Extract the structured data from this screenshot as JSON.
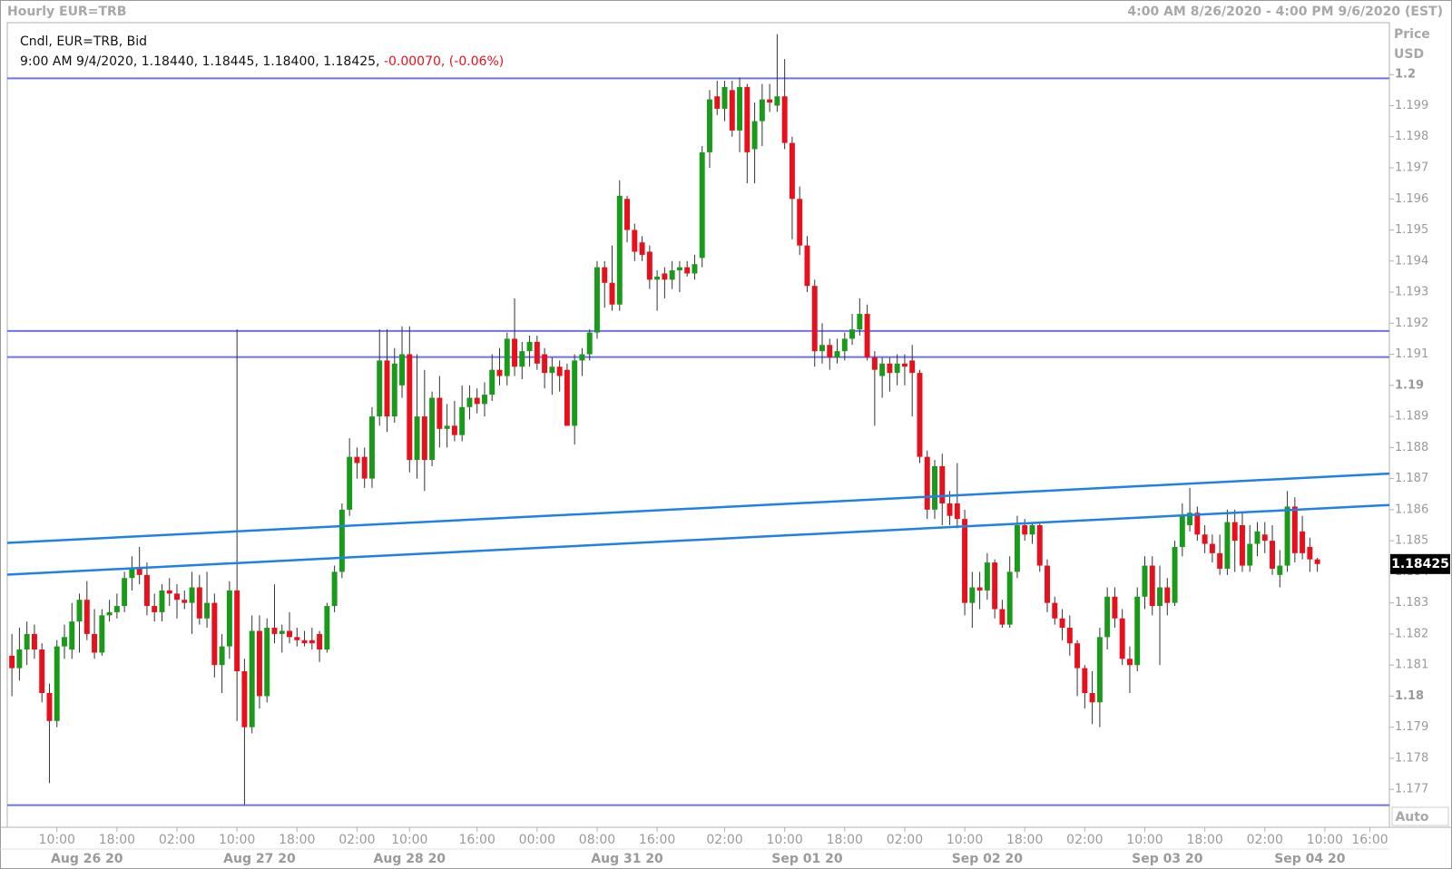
{
  "chart_data": {
    "type": "candlestick",
    "title": "Hourly EUR=TRB",
    "range_text": "4:00 AM 8/26/2020 - 4:00 PM 9/6/2020 (EST)",
    "legend_title": "Cndl, EUR=TRB, Bid",
    "legend_info": "9:00 AM 9/4/2020, 1.18440, 1.18445, 1.18400, 1.18425,",
    "legend_change": "-0.00070, (-0.06%)",
    "y_axis_title": "Price",
    "y_axis_unit": "USD",
    "scale_mode": "Auto",
    "up_color": "#1a9a1a",
    "down_color": "#e8101c",
    "open": [
      1.1813,
      1.1809,
      1.1815,
      1.182,
      1.1815,
      1.1801,
      1.1792,
      1.1816,
      1.1815,
      1.1824,
      1.1831,
      1.182,
      1.1814,
      1.1826,
      1.1827,
      1.1829,
      1.1838,
      1.1841,
      1.1839,
      1.1829,
      1.1827,
      1.1834,
      1.1833,
      1.1831,
      1.183,
      1.1835,
      1.1825,
      1.183,
      1.181,
      1.1816,
      1.1834,
      1.1808,
      1.179,
      1.1821,
      1.18,
      1.1822,
      1.182,
      1.1821,
      1.1819,
      1.1818,
      1.1818,
      1.182,
      1.1815,
      1.1829,
      1.184,
      1.186,
      1.1877,
      1.1877,
      1.187,
      1.189,
      1.1908,
      1.189,
      1.19,
      1.191,
      1.1876,
      1.189,
      1.1876,
      1.1896,
      1.1886,
      1.1887,
      1.1884,
      1.1893,
      1.1896,
      1.1894,
      1.1897,
      1.1905,
      1.1903,
      1.1915,
      1.1906,
      1.1911,
      1.1914,
      1.191,
      1.1904,
      1.1906,
      1.1905,
      1.1887,
      1.1908,
      1.191,
      1.1917,
      1.1938,
      1.1933,
      1.1926,
      1.196,
      1.195,
      1.1946,
      1.1943,
      1.1934,
      1.1936,
      1.1934,
      1.1937,
      1.1938,
      1.1936,
      1.1941,
      1.1975,
      1.1993,
      1.1989,
      1.1995,
      1.1982,
      1.1996,
      1.1976,
      1.1985,
      1.1992,
      1.199,
      1.1993,
      1.1978,
      1.196,
      1.1945,
      1.1932,
      1.1911,
      1.1913,
      1.1909,
      1.1911,
      1.1915,
      1.1918,
      1.1923,
      1.1909,
      1.1903,
      1.1907,
      1.1904,
      1.1907,
      1.1908,
      1.1904,
      1.1877,
      1.186,
      1.1874,
      1.1862,
      1.1862,
      1.1857,
      1.183,
      1.1835,
      1.1834,
      1.1843,
      1.1828,
      1.1823,
      1.184,
      1.1855,
      1.1852,
      1.1855,
      1.1842,
      1.183,
      1.1825,
      1.1822,
      1.1817,
      1.1809,
      1.1801,
      1.1798,
      1.1819,
      1.1832,
      1.1825,
      1.1812,
      1.181,
      1.1832,
      1.1842,
      1.1829,
      1.1835,
      1.183,
      1.1848,
      1.1855,
      1.1859,
      1.1852,
      1.1849,
      1.1846,
      1.1841,
      1.1856,
      1.1855,
      1.1842,
      1.1849,
      1.1852,
      1.185,
      1.1839,
      1.1842,
      1.1861,
      1.1853,
      1.1848,
      1.1844
    ],
    "high": [
      1.182,
      1.1822,
      1.1824,
      1.1823,
      1.1817,
      1.1804,
      1.1818,
      1.1823,
      1.183,
      1.1833,
      1.1837,
      1.1828,
      1.1828,
      1.1831,
      1.1833,
      1.184,
      1.1845,
      1.1848,
      1.1843,
      1.1833,
      1.1836,
      1.1838,
      1.1836,
      1.1834,
      1.184,
      1.1839,
      1.184,
      1.1833,
      1.182,
      1.1837,
      1.1918,
      1.1812,
      1.1826,
      1.1826,
      1.1825,
      1.1836,
      1.1823,
      1.1827,
      1.1822,
      1.1821,
      1.1822,
      1.1821,
      1.183,
      1.1842,
      1.1862,
      1.1883,
      1.188,
      1.188,
      1.1893,
      1.1918,
      1.1918,
      1.1912,
      1.1919,
      1.1919,
      1.191,
      1.1905,
      1.1898,
      1.1903,
      1.1894,
      1.1895,
      1.19,
      1.19,
      1.1899,
      1.1901,
      1.191,
      1.1912,
      1.1917,
      1.1928,
      1.1914,
      1.1916,
      1.1916,
      1.1912,
      1.1909,
      1.1908,
      1.1907,
      1.191,
      1.1912,
      1.1918,
      1.194,
      1.194,
      1.1945,
      1.1966,
      1.1961,
      1.1952,
      1.1948,
      1.1945,
      1.1937,
      1.1938,
      1.194,
      1.194,
      1.194,
      1.1942,
      1.1977,
      1.1995,
      1.1998,
      1.1998,
      1.1998,
      1.1999,
      1.1997,
      1.1991,
      1.1997,
      1.1997,
      1.2013,
      1.2005,
      1.198,
      1.1964,
      1.1948,
      1.1934,
      1.192,
      1.1915,
      1.1915,
      1.1917,
      1.1923,
      1.1928,
      1.1926,
      1.1911,
      1.1909,
      1.1909,
      1.191,
      1.191,
      1.1913,
      1.1905,
      1.1879,
      1.1876,
      1.1878,
      1.1866,
      1.1875,
      1.186,
      1.184,
      1.184,
      1.1846,
      1.1844,
      1.1831,
      1.1845,
      1.1858,
      1.1857,
      1.1856,
      1.1856,
      1.1844,
      1.1832,
      1.1828,
      1.1826,
      1.1818,
      1.181,
      1.1808,
      1.1822,
      1.1835,
      1.1835,
      1.1828,
      1.1816,
      1.1835,
      1.1845,
      1.1845,
      1.1842,
      1.1838,
      1.185,
      1.1862,
      1.1867,
      1.1861,
      1.1855,
      1.1852,
      1.1852,
      1.186,
      1.186,
      1.1859,
      1.1855,
      1.1856,
      1.1856,
      1.1855,
      1.1847,
      1.1866,
      1.1864,
      1.1858,
      1.1851,
      1.18445
    ],
    "low": [
      1.18,
      1.1805,
      1.181,
      1.1812,
      1.1798,
      1.1772,
      1.179,
      1.1812,
      1.1812,
      1.1814,
      1.1818,
      1.1812,
      1.1813,
      1.1824,
      1.1825,
      1.1827,
      1.1834,
      1.1836,
      1.1826,
      1.1824,
      1.1824,
      1.1829,
      1.1825,
      1.1828,
      1.182,
      1.1823,
      1.1822,
      1.1806,
      1.1801,
      1.1812,
      1.1792,
      1.1765,
      1.1788,
      1.1796,
      1.1798,
      1.1817,
      1.1814,
      1.1817,
      1.1816,
      1.1816,
      1.1815,
      1.1811,
      1.1814,
      1.1827,
      1.1838,
      1.1858,
      1.187,
      1.1867,
      1.1867,
      1.1887,
      1.1885,
      1.1888,
      1.1896,
      1.1872,
      1.187,
      1.1866,
      1.1874,
      1.188,
      1.188,
      1.1882,
      1.1882,
      1.1889,
      1.1891,
      1.189,
      1.1895,
      1.19,
      1.19,
      1.1903,
      1.1902,
      1.1906,
      1.1905,
      1.1899,
      1.1897,
      1.1898,
      1.1887,
      1.1881,
      1.1903,
      1.1908,
      1.1915,
      1.1925,
      1.1924,
      1.1924,
      1.1946,
      1.194,
      1.194,
      1.1931,
      1.1924,
      1.1928,
      1.1931,
      1.193,
      1.1935,
      1.1934,
      1.1938,
      1.197,
      1.1987,
      1.1985,
      1.198,
      1.1975,
      1.1965,
      1.1965,
      1.1977,
      1.1988,
      1.1988,
      1.1976,
      1.1947,
      1.1942,
      1.193,
      1.1906,
      1.1907,
      1.1905,
      1.1907,
      1.1908,
      1.1913,
      1.1916,
      1.1908,
      1.1887,
      1.1896,
      1.1898,
      1.19,
      1.19,
      1.189,
      1.1875,
      1.1857,
      1.1857,
      1.1855,
      1.1855,
      1.1854,
      1.1826,
      1.1822,
      1.1828,
      1.1831,
      1.1825,
      1.1822,
      1.1822,
      1.1838,
      1.185,
      1.1849,
      1.184,
      1.1827,
      1.1823,
      1.1818,
      1.1813,
      1.18,
      1.1796,
      1.1791,
      1.179,
      1.1815,
      1.1822,
      1.181,
      1.1801,
      1.1808,
      1.1828,
      1.1826,
      1.181,
      1.1826,
      1.1829,
      1.1845,
      1.1853,
      1.185,
      1.1846,
      1.1843,
      1.1839,
      1.1839,
      1.184,
      1.184,
      1.184,
      1.1845,
      1.1846,
      1.1839,
      1.1835,
      1.184,
      1.1843,
      1.1844,
      1.184,
      1.184
    ],
    "close": [
      1.1809,
      1.1815,
      1.182,
      1.1815,
      1.1801,
      1.1792,
      1.1816,
      1.1819,
      1.1824,
      1.1831,
      1.182,
      1.1814,
      1.1826,
      1.1827,
      1.1829,
      1.1838,
      1.1841,
      1.1839,
      1.1829,
      1.1827,
      1.1834,
      1.1833,
      1.1831,
      1.183,
      1.1835,
      1.1825,
      1.183,
      1.181,
      1.1816,
      1.1834,
      1.1808,
      1.179,
      1.1821,
      1.18,
      1.1822,
      1.182,
      1.1821,
      1.1819,
      1.1818,
      1.1817,
      1.1817,
      1.1815,
      1.1829,
      1.184,
      1.186,
      1.1877,
      1.1875,
      1.187,
      1.189,
      1.1908,
      1.189,
      1.1907,
      1.191,
      1.1876,
      1.189,
      1.1876,
      1.1896,
      1.1886,
      1.1887,
      1.1884,
      1.1893,
      1.1896,
      1.1894,
      1.1897,
      1.1905,
      1.1903,
      1.1915,
      1.1906,
      1.1911,
      1.1914,
      1.1907,
      1.1904,
      1.1906,
      1.1903,
      1.1887,
      1.1908,
      1.191,
      1.1917,
      1.1938,
      1.1933,
      1.1926,
      1.1961,
      1.195,
      1.1943,
      1.1942,
      1.1934,
      1.1935,
      1.1934,
      1.1937,
      1.1938,
      1.1936,
      1.1939,
      1.1975,
      1.1992,
      1.1989,
      1.1996,
      1.1982,
      1.1996,
      1.1975,
      1.1985,
      1.1992,
      1.1991,
      1.1993,
      1.1978,
      1.196,
      1.1945,
      1.1932,
      1.1911,
      1.1913,
      1.1909,
      1.1911,
      1.1915,
      1.1918,
      1.1923,
      1.1909,
      1.1905,
      1.1907,
      1.1904,
      1.1907,
      1.1906,
      1.1904,
      1.1877,
      1.186,
      1.1874,
      1.1862,
      1.1858,
      1.1857,
      1.183,
      1.1835,
      1.1834,
      1.1843,
      1.1828,
      1.1823,
      1.184,
      1.1855,
      1.1852,
      1.1855,
      1.1842,
      1.183,
      1.1825,
      1.1822,
      1.1817,
      1.1809,
      1.1801,
      1.1798,
      1.1819,
      1.1832,
      1.1825,
      1.1812,
      1.181,
      1.1832,
      1.1842,
      1.1829,
      1.1835,
      1.183,
      1.1848,
      1.1858,
      1.1859,
      1.1852,
      1.1849,
      1.1846,
      1.1841,
      1.1856,
      1.185,
      1.1842,
      1.1849,
      1.1853,
      1.185,
      1.1841,
      1.1842,
      1.1861,
      1.1846,
      1.1846,
      1.1844,
      1.18425
    ],
    "hlines": {
      "color": "#6f72ee",
      "values": [
        1.19988,
        1.19175,
        1.19091,
        1.17649
      ]
    },
    "trendlines": {
      "color": "#1f80e8",
      "lines": [
        {
          "values": [
            1.18493,
            1.18716
          ]
        },
        {
          "values": [
            1.18391,
            1.18615
          ]
        }
      ]
    },
    "xlim": [
      -0.62,
      183.6
    ],
    "ylim": [
      1.17578,
      1.20167
    ],
    "yticks": [
      1.2,
      1.199,
      1.198,
      1.197,
      1.196,
      1.195,
      1.194,
      1.193,
      1.192,
      1.191,
      1.19,
      1.189,
      1.188,
      1.187,
      1.186,
      1.185,
      1.184,
      1.183,
      1.182,
      1.181,
      1.18,
      1.179,
      1.178,
      1.177
    ],
    "xticks": [
      {
        "value": 6,
        "label": "10:00"
      },
      {
        "value": 14,
        "label": "18:00"
      },
      {
        "value": 22,
        "label": "02:00"
      },
      {
        "value": 30,
        "label": "10:00"
      },
      {
        "value": 38,
        "label": "18:00"
      },
      {
        "value": 46,
        "label": "02:00"
      },
      {
        "value": 53,
        "label": "10:00"
      },
      {
        "value": 62,
        "label": "16:00"
      },
      {
        "value": 70,
        "label": "00:00"
      },
      {
        "value": 78,
        "label": "08:00"
      },
      {
        "value": 86,
        "label": "16:00"
      },
      {
        "value": 95,
        "label": "02:00"
      },
      {
        "value": 103,
        "label": "10:00"
      },
      {
        "value": 111,
        "label": "18:00"
      },
      {
        "value": 119,
        "label": "02:00"
      },
      {
        "value": 127,
        "label": "10:00"
      },
      {
        "value": 135,
        "label": "18:00"
      },
      {
        "value": 143,
        "label": "02:00"
      },
      {
        "value": 151,
        "label": "10:00"
      },
      {
        "value": 159,
        "label": "18:00"
      },
      {
        "value": 167,
        "label": "02:00"
      },
      {
        "value": 175,
        "label": "10:00"
      },
      {
        "value": 181,
        "label": "16:00"
      }
    ],
    "date_ticks": [
      {
        "value": 10,
        "label": "Aug 26 20"
      },
      {
        "value": 33,
        "label": "Aug 27 20"
      },
      {
        "value": 53,
        "label": "Aug 28 20"
      },
      {
        "value": 82,
        "label": "Aug 31 20"
      },
      {
        "value": 106,
        "label": "Sep 01 20"
      },
      {
        "value": 130,
        "label": "Sep 02 20"
      },
      {
        "value": 154,
        "label": "Sep 03 20"
      },
      {
        "value": 173,
        "label": "Sep 04 20"
      }
    ]
  }
}
